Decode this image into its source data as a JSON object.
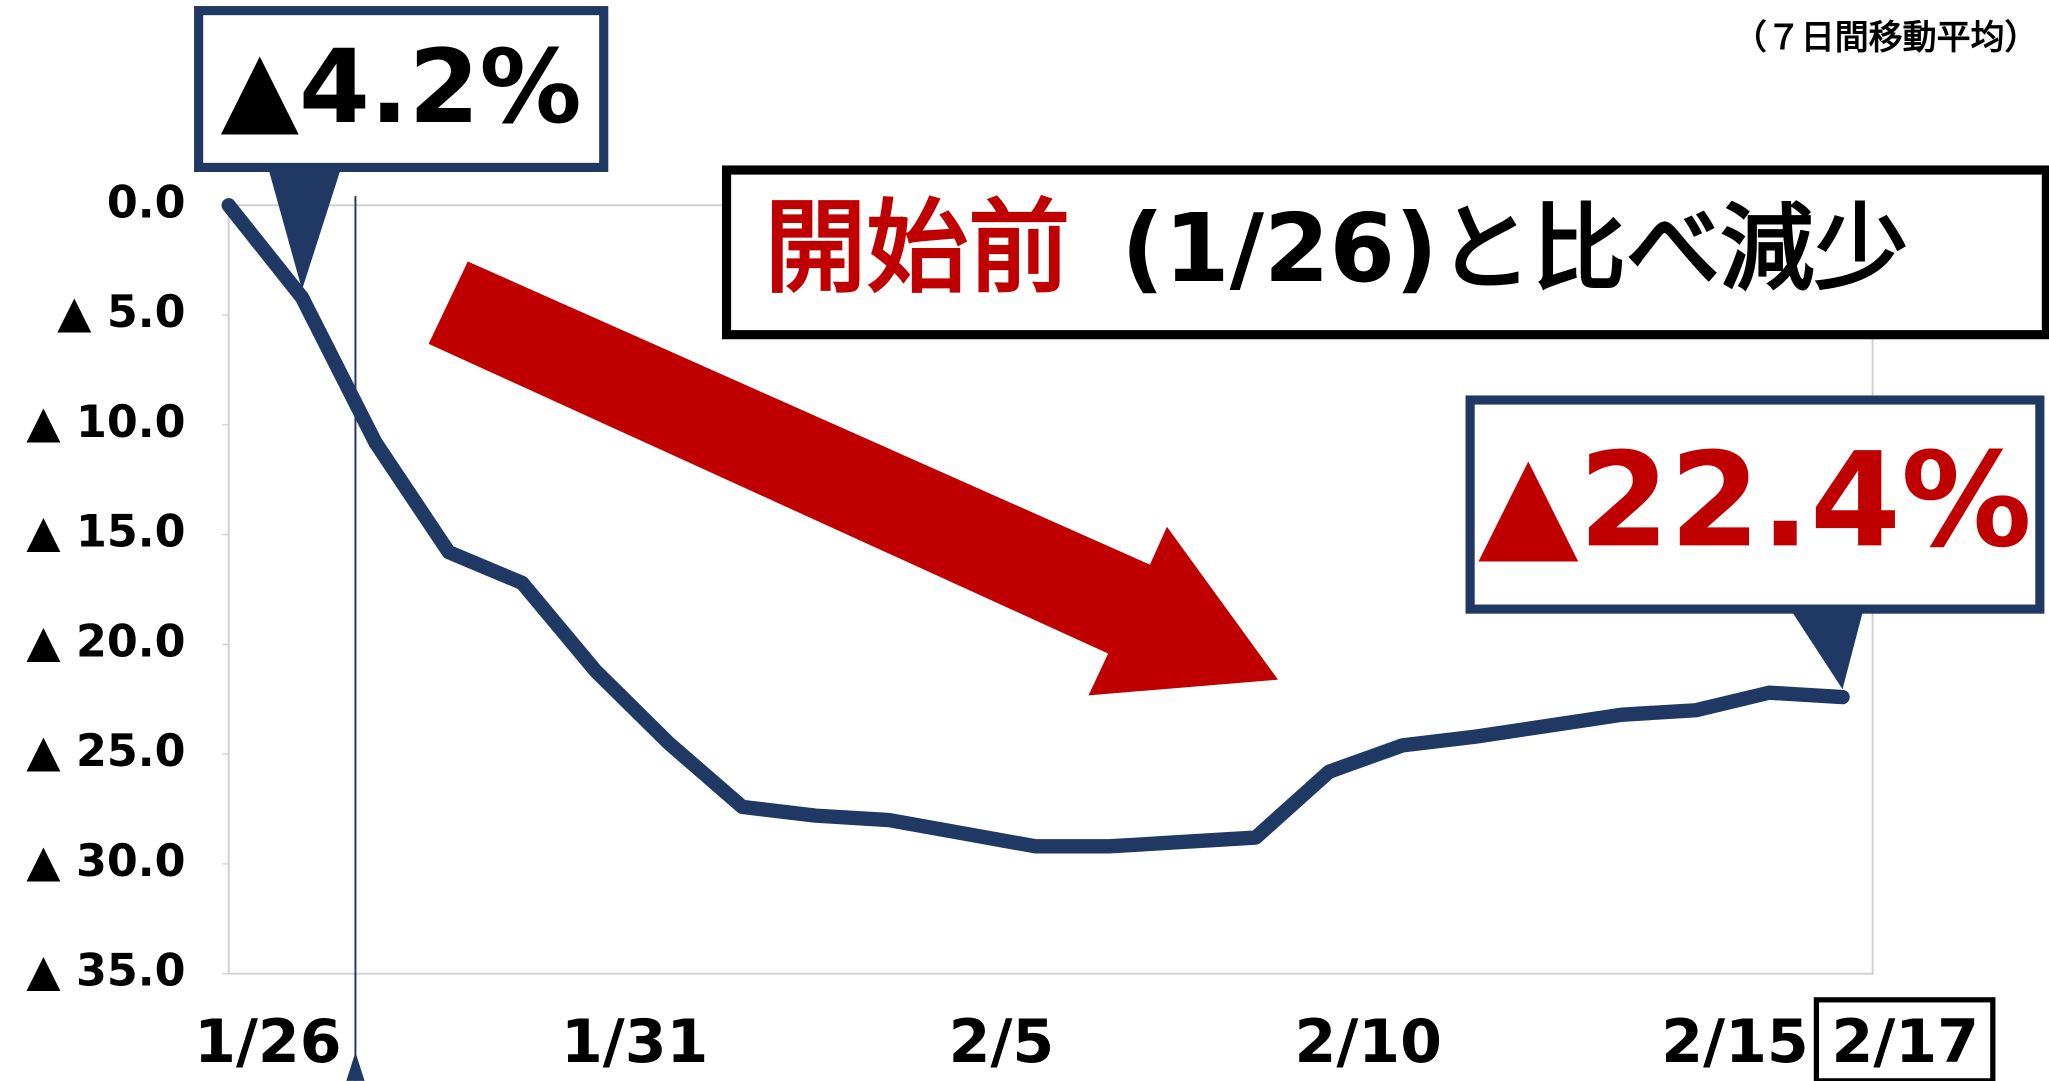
{
  "chart_data": {
    "type": "line",
    "subtitle": "（７日間移動平均）",
    "annotations": [
      "開始前",
      "(1/26)と比べ減少"
    ],
    "categories": [
      "1/26",
      null,
      null,
      null,
      null,
      "1/31",
      null,
      null,
      null,
      null,
      "2/5",
      null,
      null,
      null,
      null,
      "2/10",
      null,
      null,
      null,
      null,
      "2/15",
      null,
      "2/17"
    ],
    "series": [
      {
        "name": "7日間移動平均",
        "color": "#1f3864",
        "values": [
          0,
          -4.2,
          -10.8,
          -15.8,
          -17.2,
          -21.2,
          -24.5,
          -27.4,
          -27.8,
          -28.0,
          -28.6,
          -29.2,
          -29.2,
          -29.0,
          -28.8,
          -25.8,
          -24.6,
          -24.2,
          -23.7,
          -23.2,
          -23.0,
          -22.2,
          -22.4
        ],
        "value_labels": [
          null,
          "▲4.2%",
          null,
          null,
          null,
          null,
          null,
          null,
          null,
          null,
          null,
          null,
          null,
          null,
          null,
          null,
          null,
          null,
          null,
          null,
          null,
          null,
          "▲22.4%"
        ]
      }
    ],
    "ylim": [
      -35,
      0
    ],
    "yticks": [
      {
        "value": 0,
        "label": "0.0"
      },
      {
        "value": -5,
        "label": "▲ 5.0"
      },
      {
        "value": -10,
        "label": "▲ 10.0"
      },
      {
        "value": -15,
        "label": "▲ 15.0"
      },
      {
        "value": -20,
        "label": "▲ 20.0"
      },
      {
        "value": -25,
        "label": "▲ 25.0"
      },
      {
        "value": -30,
        "label": "▲ 30.0"
      },
      {
        "value": -35,
        "label": "▲ 35.0"
      }
    ],
    "grid": false
  }
}
